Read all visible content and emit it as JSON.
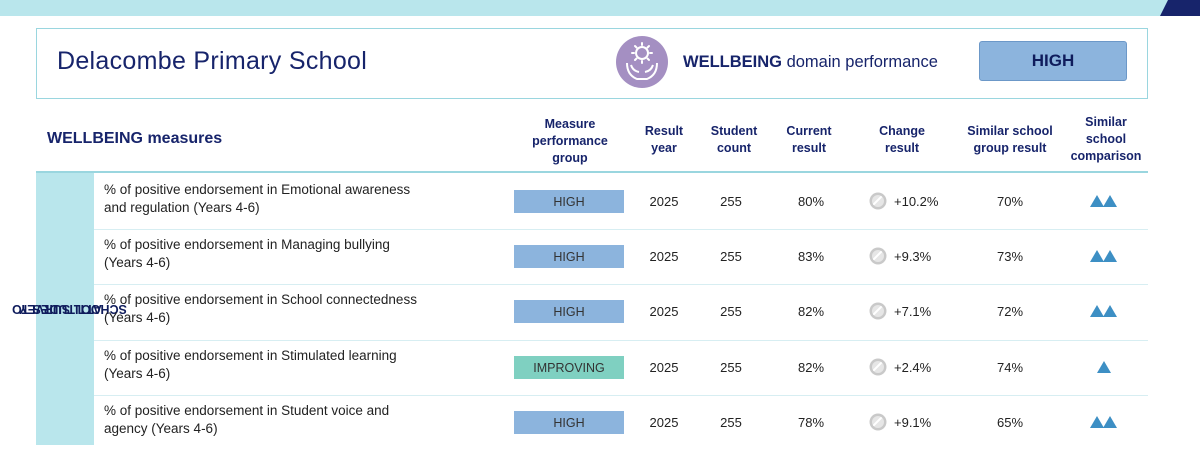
{
  "school": {
    "name": "Delacombe Primary School"
  },
  "domain": {
    "bold": "WELLBEING",
    "rest": " domain performance",
    "performance": "HIGH",
    "icon": "wellbeing-hands-gear-icon"
  },
  "measures_title": "WELLBEING measures",
  "columns": {
    "measure_group": [
      "Measure",
      "performance",
      "group"
    ],
    "result_year": [
      "Result",
      "year"
    ],
    "student_count": [
      "Student",
      "count"
    ],
    "current_result": [
      "Current",
      "result"
    ],
    "change_result": [
      "Change",
      "result"
    ],
    "similar_group_result": [
      "Similar school",
      "group result"
    ],
    "similar_comparison": [
      "Similar",
      "school",
      "comparison"
    ]
  },
  "section": {
    "line1": "ATTITUDES TO",
    "line2": "SCHOOL SURVEY"
  },
  "rows": [
    {
      "measure_line1": "% of positive endorsement in Emotional awareness",
      "measure_line2": "and regulation (Years 4-6)",
      "group": "HIGH",
      "year": "2025",
      "count": "255",
      "current": "80%",
      "change": "+10.2%",
      "similar": "70%",
      "comparison_triangles": 2
    },
    {
      "measure_line1": "% of positive endorsement in Managing bullying",
      "measure_line2": "(Years 4-6)",
      "group": "HIGH",
      "year": "2025",
      "count": "255",
      "current": "83%",
      "change": "+9.3%",
      "similar": "73%",
      "comparison_triangles": 2
    },
    {
      "measure_line1": "% of positive endorsement in School connectedness",
      "measure_line2": "(Years 4-6)",
      "group": "HIGH",
      "year": "2025",
      "count": "255",
      "current": "82%",
      "change": "+7.1%",
      "similar": "72%",
      "comparison_triangles": 2
    },
    {
      "measure_line1": "% of positive endorsement in Stimulated learning",
      "measure_line2": "(Years 4-6)",
      "group": "IMPROVING",
      "year": "2025",
      "count": "255",
      "current": "82%",
      "change": "+2.4%",
      "similar": "74%",
      "comparison_triangles": 1
    },
    {
      "measure_line1": "% of positive endorsement in Student voice and",
      "measure_line2": "agency (Years 4-6)",
      "group": "HIGH",
      "year": "2025",
      "count": "255",
      "current": "78%",
      "change": "+9.1%",
      "similar": "65%",
      "comparison_triangles": 2
    }
  ],
  "colors": {
    "navy": "#17246b",
    "teal_light": "#b9e6ec",
    "high": "#8cb4dd",
    "improving": "#7fd0c1",
    "triangle": "#3d8fc4"
  }
}
